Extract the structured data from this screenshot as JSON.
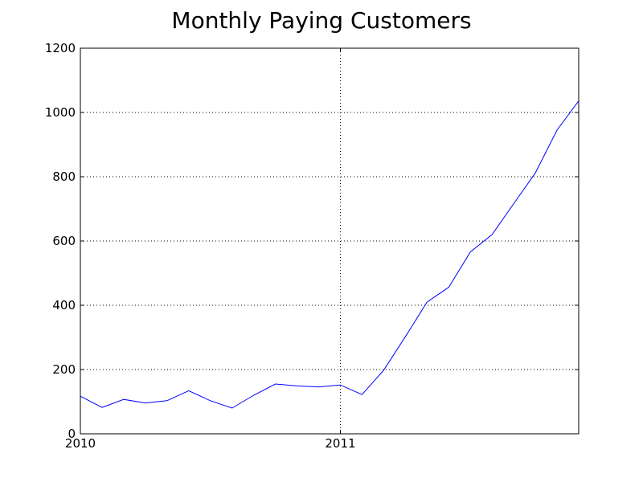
{
  "chart_data": {
    "type": "line",
    "title": "Monthly Paying Customers",
    "xlabel": "",
    "ylabel": "",
    "x_ticks": [
      "2010",
      "2011"
    ],
    "y_ticks": [
      0,
      200,
      400,
      600,
      800,
      1000,
      1200
    ],
    "ylim": [
      0,
      1200
    ],
    "xlim": [
      "2010-01",
      "2011-12"
    ],
    "grid": true,
    "series": [
      {
        "color": "#0000ff",
        "x": [
          "2010-01",
          "2010-02",
          "2010-03",
          "2010-04",
          "2010-05",
          "2010-06",
          "2010-07",
          "2010-08",
          "2010-09",
          "2010-10",
          "2010-11",
          "2010-12",
          "2011-01",
          "2011-02",
          "2011-03",
          "2011-04",
          "2011-05",
          "2011-06",
          "2011-07",
          "2011-08",
          "2011-09",
          "2011-10",
          "2011-11",
          "2011-12"
        ],
        "values": [
          117,
          82,
          107,
          96,
          103,
          134,
          103,
          80,
          120,
          155,
          149,
          146,
          152,
          122,
          198,
          302,
          410,
          456,
          566,
          620,
          716,
          812,
          945,
          1036
        ]
      }
    ]
  }
}
